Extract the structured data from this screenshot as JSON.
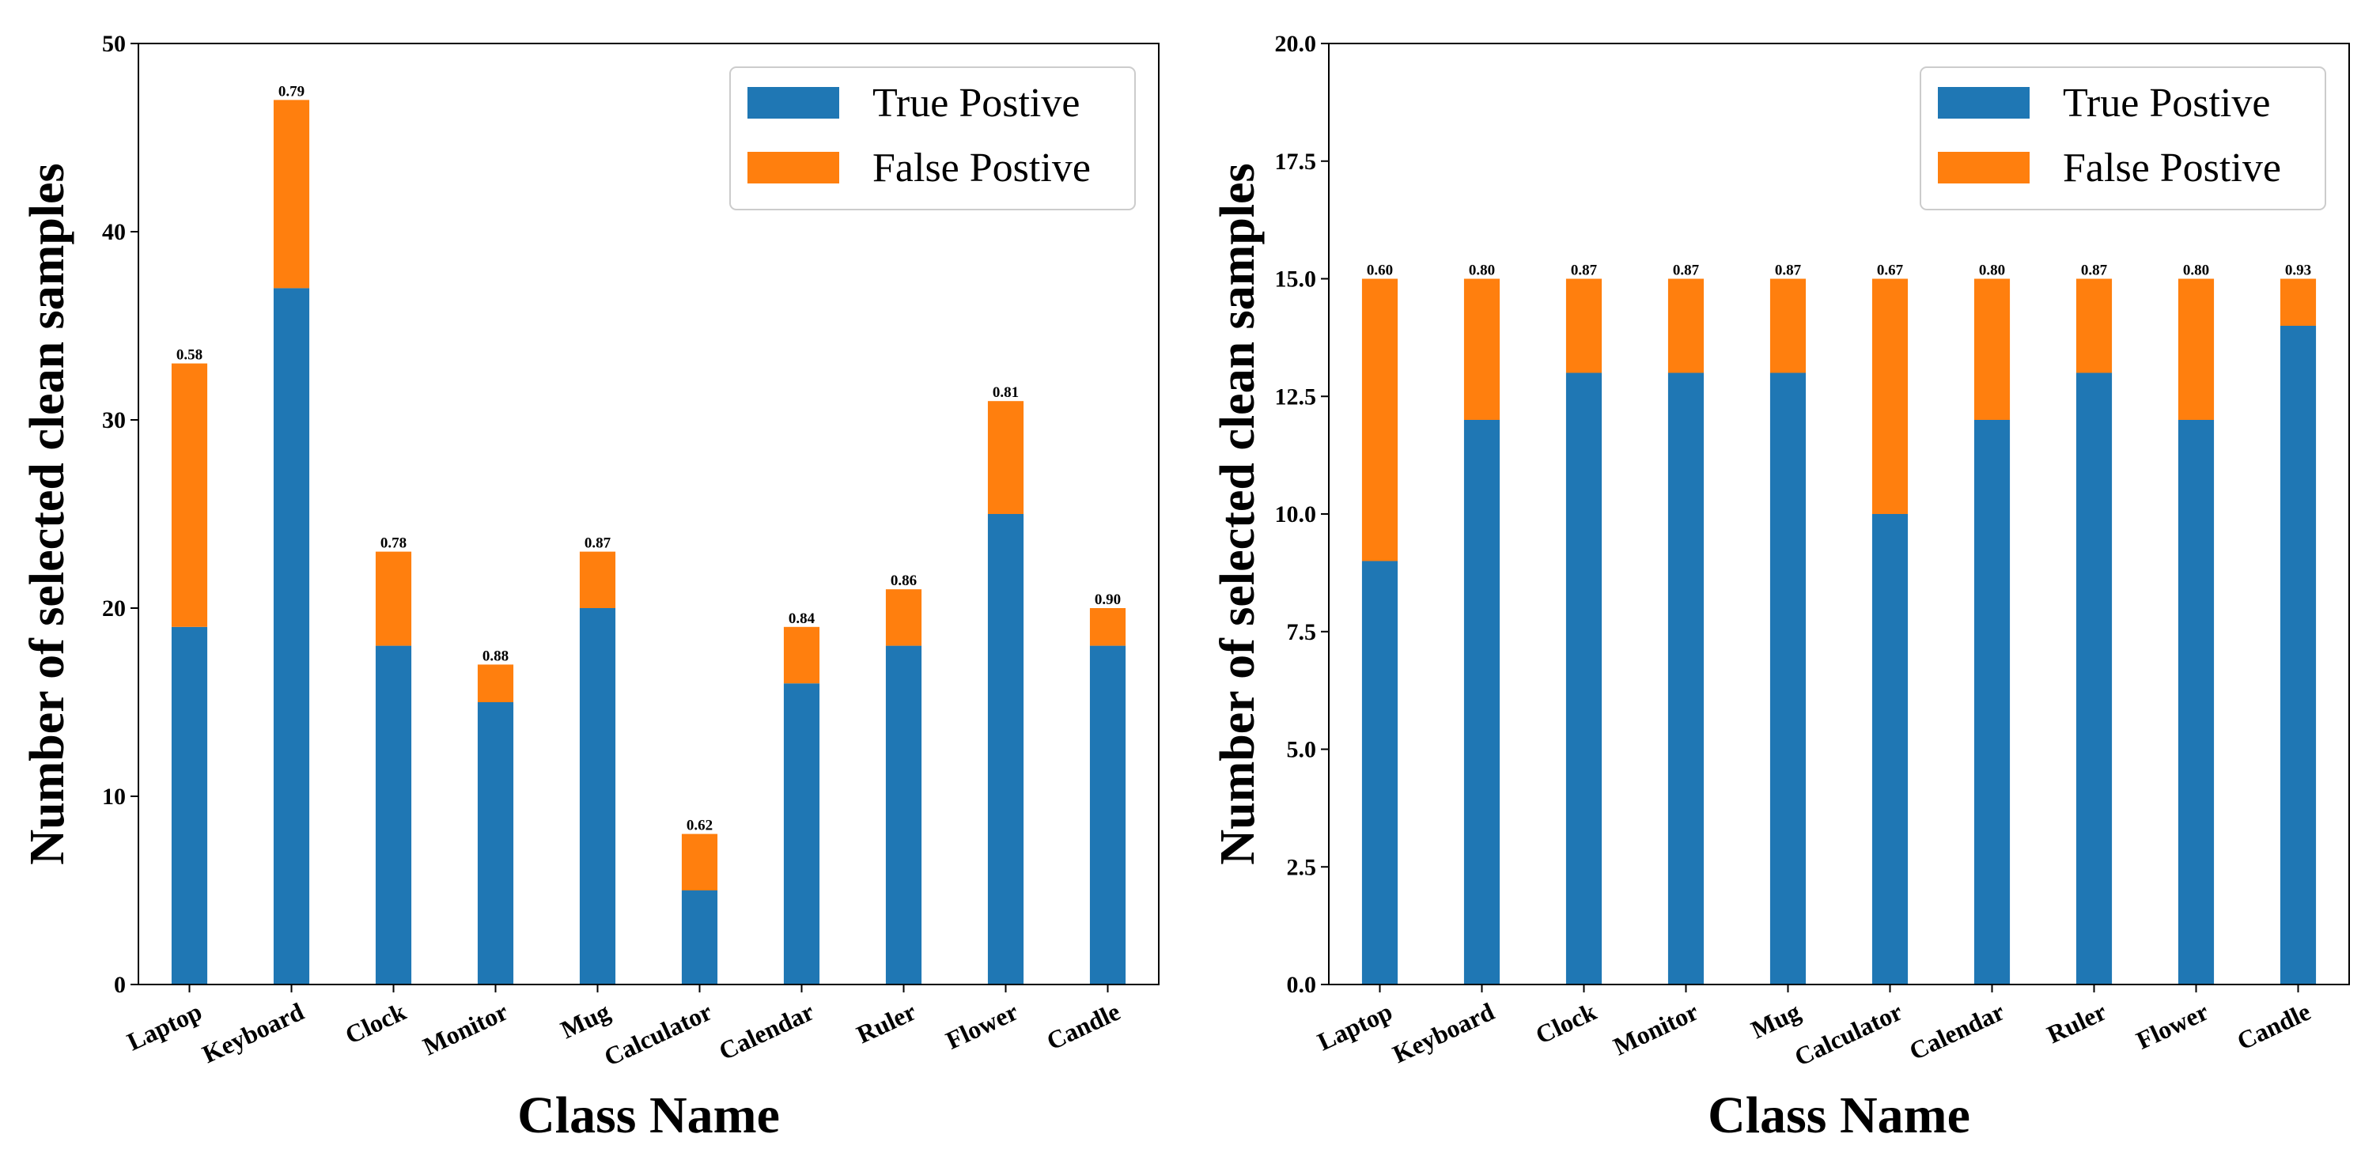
{
  "chart_data": [
    {
      "type": "bar",
      "stacked": true,
      "categories": [
        "Laptop",
        "Keyboard",
        "Clock",
        "Monitor",
        "Mug",
        "Calculator",
        "Calendar",
        "Ruler",
        "Flower",
        "Candle"
      ],
      "series": [
        {
          "name": "True Postive",
          "color": "#1f77b4",
          "values": [
            19,
            37,
            18,
            15,
            20,
            5,
            16,
            18,
            25,
            18
          ]
        },
        {
          "name": "False Postive",
          "color": "#ff7f0e",
          "values": [
            14,
            10,
            5,
            2,
            3,
            3,
            3,
            3,
            6,
            2
          ]
        }
      ],
      "bar_labels": [
        "0.58",
        "0.79",
        "0.78",
        "0.88",
        "0.87",
        "0.62",
        "0.84",
        "0.86",
        "0.81",
        "0.90"
      ],
      "yticks": [
        "0",
        "10",
        "20",
        "30",
        "40",
        "50"
      ],
      "ylim": [
        0,
        50
      ],
      "xlabel": "Class Name",
      "ylabel": "Number of selected clean samples",
      "legend_position": "upper-right",
      "grid": false
    },
    {
      "type": "bar",
      "stacked": true,
      "categories": [
        "Laptop",
        "Keyboard",
        "Clock",
        "Monitor",
        "Mug",
        "Calculator",
        "Calendar",
        "Ruler",
        "Flower",
        "Candle"
      ],
      "series": [
        {
          "name": "True Postive",
          "color": "#1f77b4",
          "values": [
            9,
            12,
            13,
            13,
            13,
            10,
            12,
            13,
            12,
            14
          ]
        },
        {
          "name": "False Postive",
          "color": "#ff7f0e",
          "values": [
            6,
            3,
            2,
            2,
            2,
            5,
            3,
            2,
            3,
            1
          ]
        }
      ],
      "bar_labels": [
        "0.60",
        "0.80",
        "0.87",
        "0.87",
        "0.87",
        "0.67",
        "0.80",
        "0.87",
        "0.80",
        "0.93"
      ],
      "yticks": [
        "0.0",
        "2.5",
        "5.0",
        "7.5",
        "10.0",
        "12.5",
        "15.0",
        "17.5",
        "20.0"
      ],
      "ylim": [
        0,
        20
      ],
      "xlabel": "Class Name",
      "ylabel": "Number of selected clean samples",
      "legend_position": "upper-right",
      "grid": false
    }
  ]
}
